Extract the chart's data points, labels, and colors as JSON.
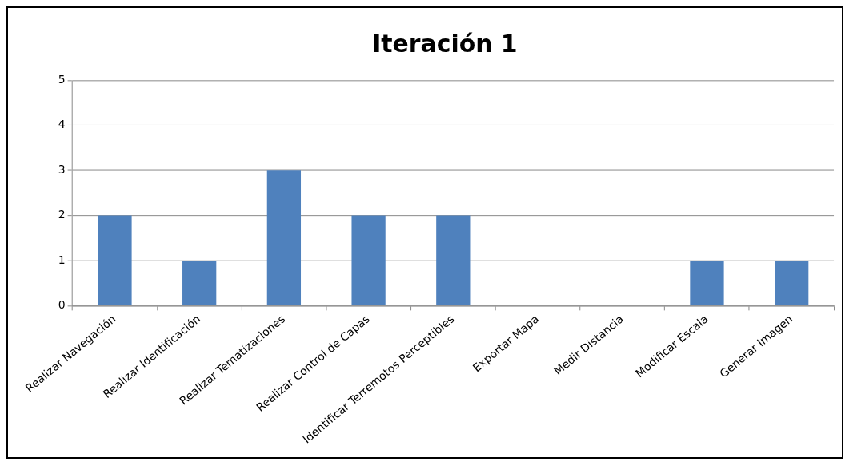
{
  "chart_data": {
    "type": "bar",
    "title": "Iteración 1",
    "categories": [
      "Realizar Navegación",
      "Realizar Identificación",
      "Realizar Tematizaciones",
      "Realizar Control de Capas",
      "Identificar Terremotos Perceptibles",
      "Exportar Mapa",
      "Medir Distancia",
      "Modificar Escala",
      "Generar Imagen"
    ],
    "values": [
      2,
      1,
      3,
      2,
      2,
      0,
      0,
      1,
      1
    ],
    "color": "#4f81bd",
    "ylim": [
      0,
      5
    ],
    "yticks": [
      0,
      1,
      2,
      3,
      4,
      5
    ],
    "grid": "y",
    "legend": false
  }
}
